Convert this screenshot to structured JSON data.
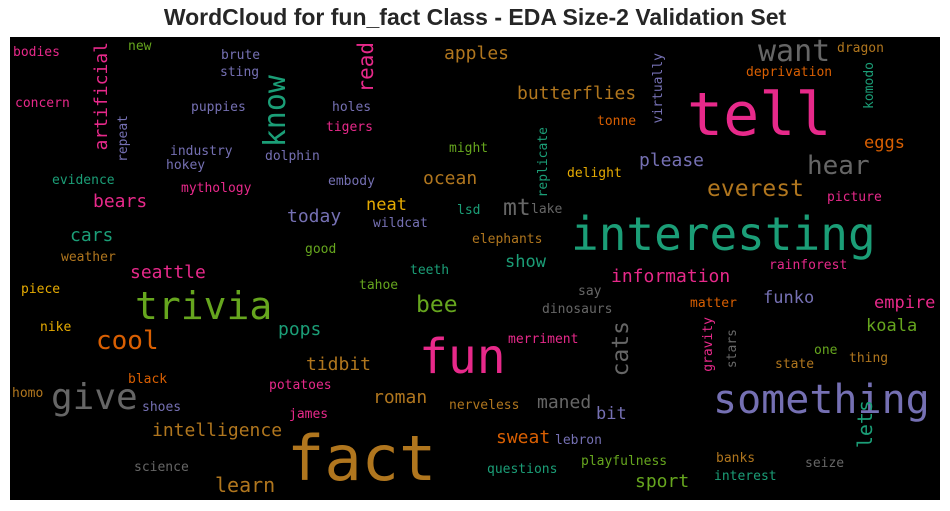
{
  "title": "WordCloud for fun_fact Class - EDA Size-2 Validation Set",
  "words": [
    {
      "text": "fact",
      "color": "#b0761e"
    },
    {
      "text": "interesting",
      "color": "#1b9e77"
    },
    {
      "text": "tell",
      "color": "#e7298a"
    },
    {
      "text": "fun",
      "color": "#e7298a"
    },
    {
      "text": "trivia",
      "color": "#66a61e"
    },
    {
      "text": "something",
      "color": "#7570b3"
    },
    {
      "text": "give",
      "color": "#666666"
    },
    {
      "text": "want",
      "color": "#666666"
    },
    {
      "text": "know",
      "color": "#1b9e77"
    },
    {
      "text": "cool",
      "color": "#d95f02"
    },
    {
      "text": "hear",
      "color": "#666666"
    },
    {
      "text": "everest",
      "color": "#b0761e"
    },
    {
      "text": "bee",
      "color": "#66a61e"
    },
    {
      "text": "cats",
      "color": "#666666"
    },
    {
      "text": "read",
      "color": "#e7298a"
    },
    {
      "text": "mt",
      "color": "#666666"
    },
    {
      "text": "learn",
      "color": "#b0761e"
    },
    {
      "text": "lets",
      "color": "#1b9e77"
    },
    {
      "text": "butterflies",
      "color": "#b0761e"
    },
    {
      "text": "apples",
      "color": "#b0761e"
    },
    {
      "text": "please",
      "color": "#7570b3"
    },
    {
      "text": "ocean",
      "color": "#b0761e"
    },
    {
      "text": "information",
      "color": "#e7298a"
    },
    {
      "text": "intelligence",
      "color": "#b0761e"
    },
    {
      "text": "artificial",
      "color": "#e7298a"
    },
    {
      "text": "bears",
      "color": "#e7298a"
    },
    {
      "text": "today",
      "color": "#7570b3"
    },
    {
      "text": "seattle",
      "color": "#e7298a"
    },
    {
      "text": "cars",
      "color": "#1b9e77"
    },
    {
      "text": "pops",
      "color": "#1b9e77"
    },
    {
      "text": "tidbit",
      "color": "#b0761e"
    },
    {
      "text": "roman",
      "color": "#b0761e"
    },
    {
      "text": "maned",
      "color": "#666666"
    },
    {
      "text": "sweat",
      "color": "#d95f02"
    },
    {
      "text": "sport",
      "color": "#66a61e"
    },
    {
      "text": "neat",
      "color": "#e6ab02"
    },
    {
      "text": "show",
      "color": "#1b9e77"
    },
    {
      "text": "eggs",
      "color": "#d95f02"
    },
    {
      "text": "empire",
      "color": "#e7298a"
    },
    {
      "text": "koala",
      "color": "#66a61e"
    },
    {
      "text": "funko",
      "color": "#7570b3"
    },
    {
      "text": "bit",
      "color": "#7570b3"
    },
    {
      "text": "bodies",
      "color": "#e7298a"
    },
    {
      "text": "new",
      "color": "#66a61e"
    },
    {
      "text": "brute",
      "color": "#7570b3"
    },
    {
      "text": "sting",
      "color": "#7570b3"
    },
    {
      "text": "dragon",
      "color": "#b0761e"
    },
    {
      "text": "deprivation",
      "color": "#d95f02"
    },
    {
      "text": "komodo",
      "color": "#1b9e77"
    },
    {
      "text": "virtually",
      "color": "#7570b3"
    },
    {
      "text": "tonne",
      "color": "#d95f02"
    },
    {
      "text": "concern",
      "color": "#e7298a"
    },
    {
      "text": "puppies",
      "color": "#7570b3"
    },
    {
      "text": "holes",
      "color": "#7570b3"
    },
    {
      "text": "tigers",
      "color": "#e7298a"
    },
    {
      "text": "repeat",
      "color": "#7570b3"
    },
    {
      "text": "industry",
      "color": "#7570b3"
    },
    {
      "text": "hokey",
      "color": "#7570b3"
    },
    {
      "text": "dolphin",
      "color": "#7570b3"
    },
    {
      "text": "might",
      "color": "#66a61e"
    },
    {
      "text": "replicate",
      "color": "#1b9e77"
    },
    {
      "text": "delight",
      "color": "#e6ab02"
    },
    {
      "text": "evidence",
      "color": "#1b9e77"
    },
    {
      "text": "mythology",
      "color": "#e7298a"
    },
    {
      "text": "embody",
      "color": "#7570b3"
    },
    {
      "text": "picture",
      "color": "#e7298a"
    },
    {
      "text": "wildcat",
      "color": "#7570b3"
    },
    {
      "text": "lsd",
      "color": "#1b9e77"
    },
    {
      "text": "lake",
      "color": "#666666"
    },
    {
      "text": "good",
      "color": "#66a61e"
    },
    {
      "text": "elephants",
      "color": "#b0761e"
    },
    {
      "text": "weather",
      "color": "#b0761e"
    },
    {
      "text": "rainforest",
      "color": "#e7298a"
    },
    {
      "text": "teeth",
      "color": "#1b9e77"
    },
    {
      "text": "tahoe",
      "color": "#66a61e"
    },
    {
      "text": "say",
      "color": "#666666"
    },
    {
      "text": "piece",
      "color": "#e6ab02"
    },
    {
      "text": "dinosaurs",
      "color": "#666666"
    },
    {
      "text": "matter",
      "color": "#d95f02"
    },
    {
      "text": "gravity",
      "color": "#e7298a"
    },
    {
      "text": "nike",
      "color": "#e6ab02"
    },
    {
      "text": "merriment",
      "color": "#e7298a"
    },
    {
      "text": "stars",
      "color": "#666666"
    },
    {
      "text": "one",
      "color": "#66a61e"
    },
    {
      "text": "thing",
      "color": "#b0761e"
    },
    {
      "text": "state",
      "color": "#b0761e"
    },
    {
      "text": "black",
      "color": "#d95f02"
    },
    {
      "text": "homo",
      "color": "#b0761e"
    },
    {
      "text": "potatoes",
      "color": "#e7298a"
    },
    {
      "text": "shoes",
      "color": "#7570b3"
    },
    {
      "text": "james",
      "color": "#e7298a"
    },
    {
      "text": "nerveless",
      "color": "#b0761e"
    },
    {
      "text": "lebron",
      "color": "#7570b3"
    },
    {
      "text": "science",
      "color": "#666666"
    },
    {
      "text": "questions",
      "color": "#1b9e77"
    },
    {
      "text": "playfulness",
      "color": "#66a61e"
    },
    {
      "text": "banks",
      "color": "#b0761e"
    },
    {
      "text": "interest",
      "color": "#1b9e77"
    },
    {
      "text": "seize",
      "color": "#666666"
    }
  ]
}
